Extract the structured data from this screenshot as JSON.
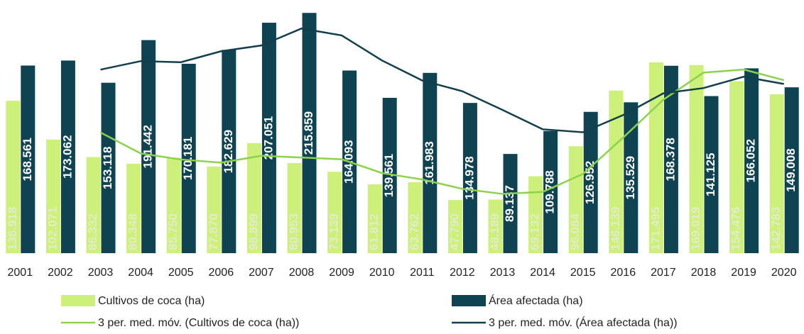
{
  "chart_data": {
    "type": "bar",
    "categories": [
      "2001",
      "2002",
      "2003",
      "2004",
      "2005",
      "2006",
      "2007",
      "2008",
      "2009",
      "2010",
      "2011",
      "2012",
      "2013",
      "2014",
      "2015",
      "2016",
      "2017",
      "2018",
      "2019",
      "2020"
    ],
    "ylim": [
      0,
      216000
    ],
    "series": [
      {
        "name": "Cultivos de coca (ha)",
        "color": "#cdf07a",
        "label_color": "#e3ecc8",
        "values": [
          136918,
          102071,
          86332,
          80348,
          85750,
          77870,
          98899,
          80953,
          73139,
          61812,
          63762,
          47790,
          48189,
          69132,
          96084,
          146139,
          171495,
          169019,
          154476,
          142783
        ],
        "value_labels": [
          "136.918",
          "102.071",
          "86.332",
          "80.348",
          "85.750",
          "77.870",
          "98.899",
          "80.953",
          "73.139",
          "61.812",
          "63.762",
          "47.790",
          "48.189",
          "69.132",
          "96.084",
          "146.139",
          "171.495",
          "169.019",
          "154.476",
          "142.783"
        ]
      },
      {
        "name": "Área afectada (ha)",
        "color": "#0f4352",
        "label_color": "#ffffff",
        "values": [
          168561,
          173062,
          153118,
          191442,
          170181,
          182629,
          207051,
          215859,
          164093,
          139561,
          161983,
          134978,
          89137,
          109788,
          126952,
          135529,
          168378,
          141125,
          166052,
          149008
        ],
        "value_labels": [
          "168.561",
          "173.062",
          "153.118",
          "191.442",
          "170.181",
          "182.629",
          "207.051",
          "215.859",
          "164.093",
          "139.561",
          "161.983",
          "134.978",
          "89.137",
          "109.788",
          "126.952",
          "135.529",
          "168.378",
          "141.125",
          "166.052",
          "149.008"
        ]
      },
      {
        "name": "3 per. med. móv. (Cultivos de coca (ha))",
        "color": "#8cd24c",
        "kind": "line",
        "values": [
          null,
          null,
          108440,
          89584,
          84143,
          81323,
          87506,
          85907,
          84330,
          71968,
          66238,
          57788,
          53247,
          55037,
          71135,
          103785,
          137906,
          162218,
          164997,
          155426
        ]
      },
      {
        "name": "3 per. med. móv. (Área afectada (ha))",
        "color": "#133e4c",
        "kind": "line",
        "values": [
          null,
          null,
          164914,
          172541,
          171580,
          181417,
          186620,
          201846,
          195668,
          173171,
          155212,
          145507,
          128699,
          111301,
          108626,
          124090,
          143620,
          148344,
          158518,
          152062
        ]
      }
    ]
  }
}
